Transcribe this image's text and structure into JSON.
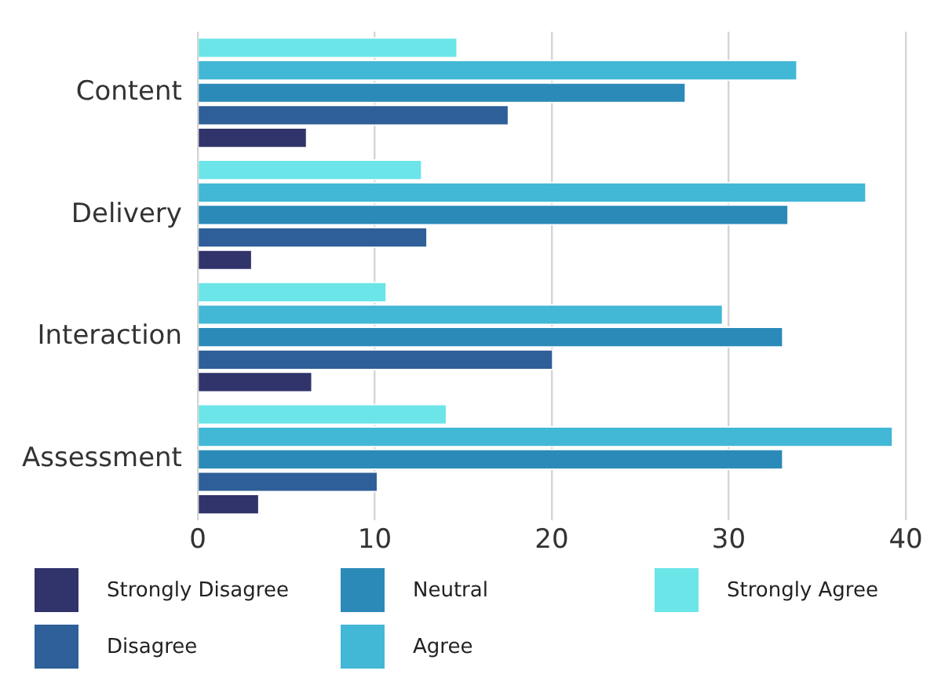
{
  "chart_data": {
    "type": "bar",
    "orientation": "horizontal",
    "categories": [
      "Content",
      "Delivery",
      "Interaction",
      "Assessment"
    ],
    "series": [
      {
        "name": "Strongly Disagree",
        "color": "#31336b",
        "values": [
          6.2,
          3.1,
          6.5,
          3.5
        ]
      },
      {
        "name": "Disagree",
        "color": "#2e5f98",
        "values": [
          17.6,
          13.0,
          20.1,
          10.2
        ]
      },
      {
        "name": "Neutral",
        "color": "#2b8ab8",
        "values": [
          27.6,
          33.4,
          33.1,
          33.1
        ]
      },
      {
        "name": "Agree",
        "color": "#42b7d6",
        "values": [
          33.9,
          37.8,
          29.7,
          39.3
        ]
      },
      {
        "name": "Strongly Agree",
        "color": "#6be5e8",
        "values": [
          14.7,
          12.7,
          10.7,
          14.1
        ]
      }
    ],
    "xlim": [
      0,
      40
    ],
    "xticks": [
      0,
      10,
      20,
      30,
      40
    ],
    "grid": "x",
    "legend": "bottom"
  }
}
